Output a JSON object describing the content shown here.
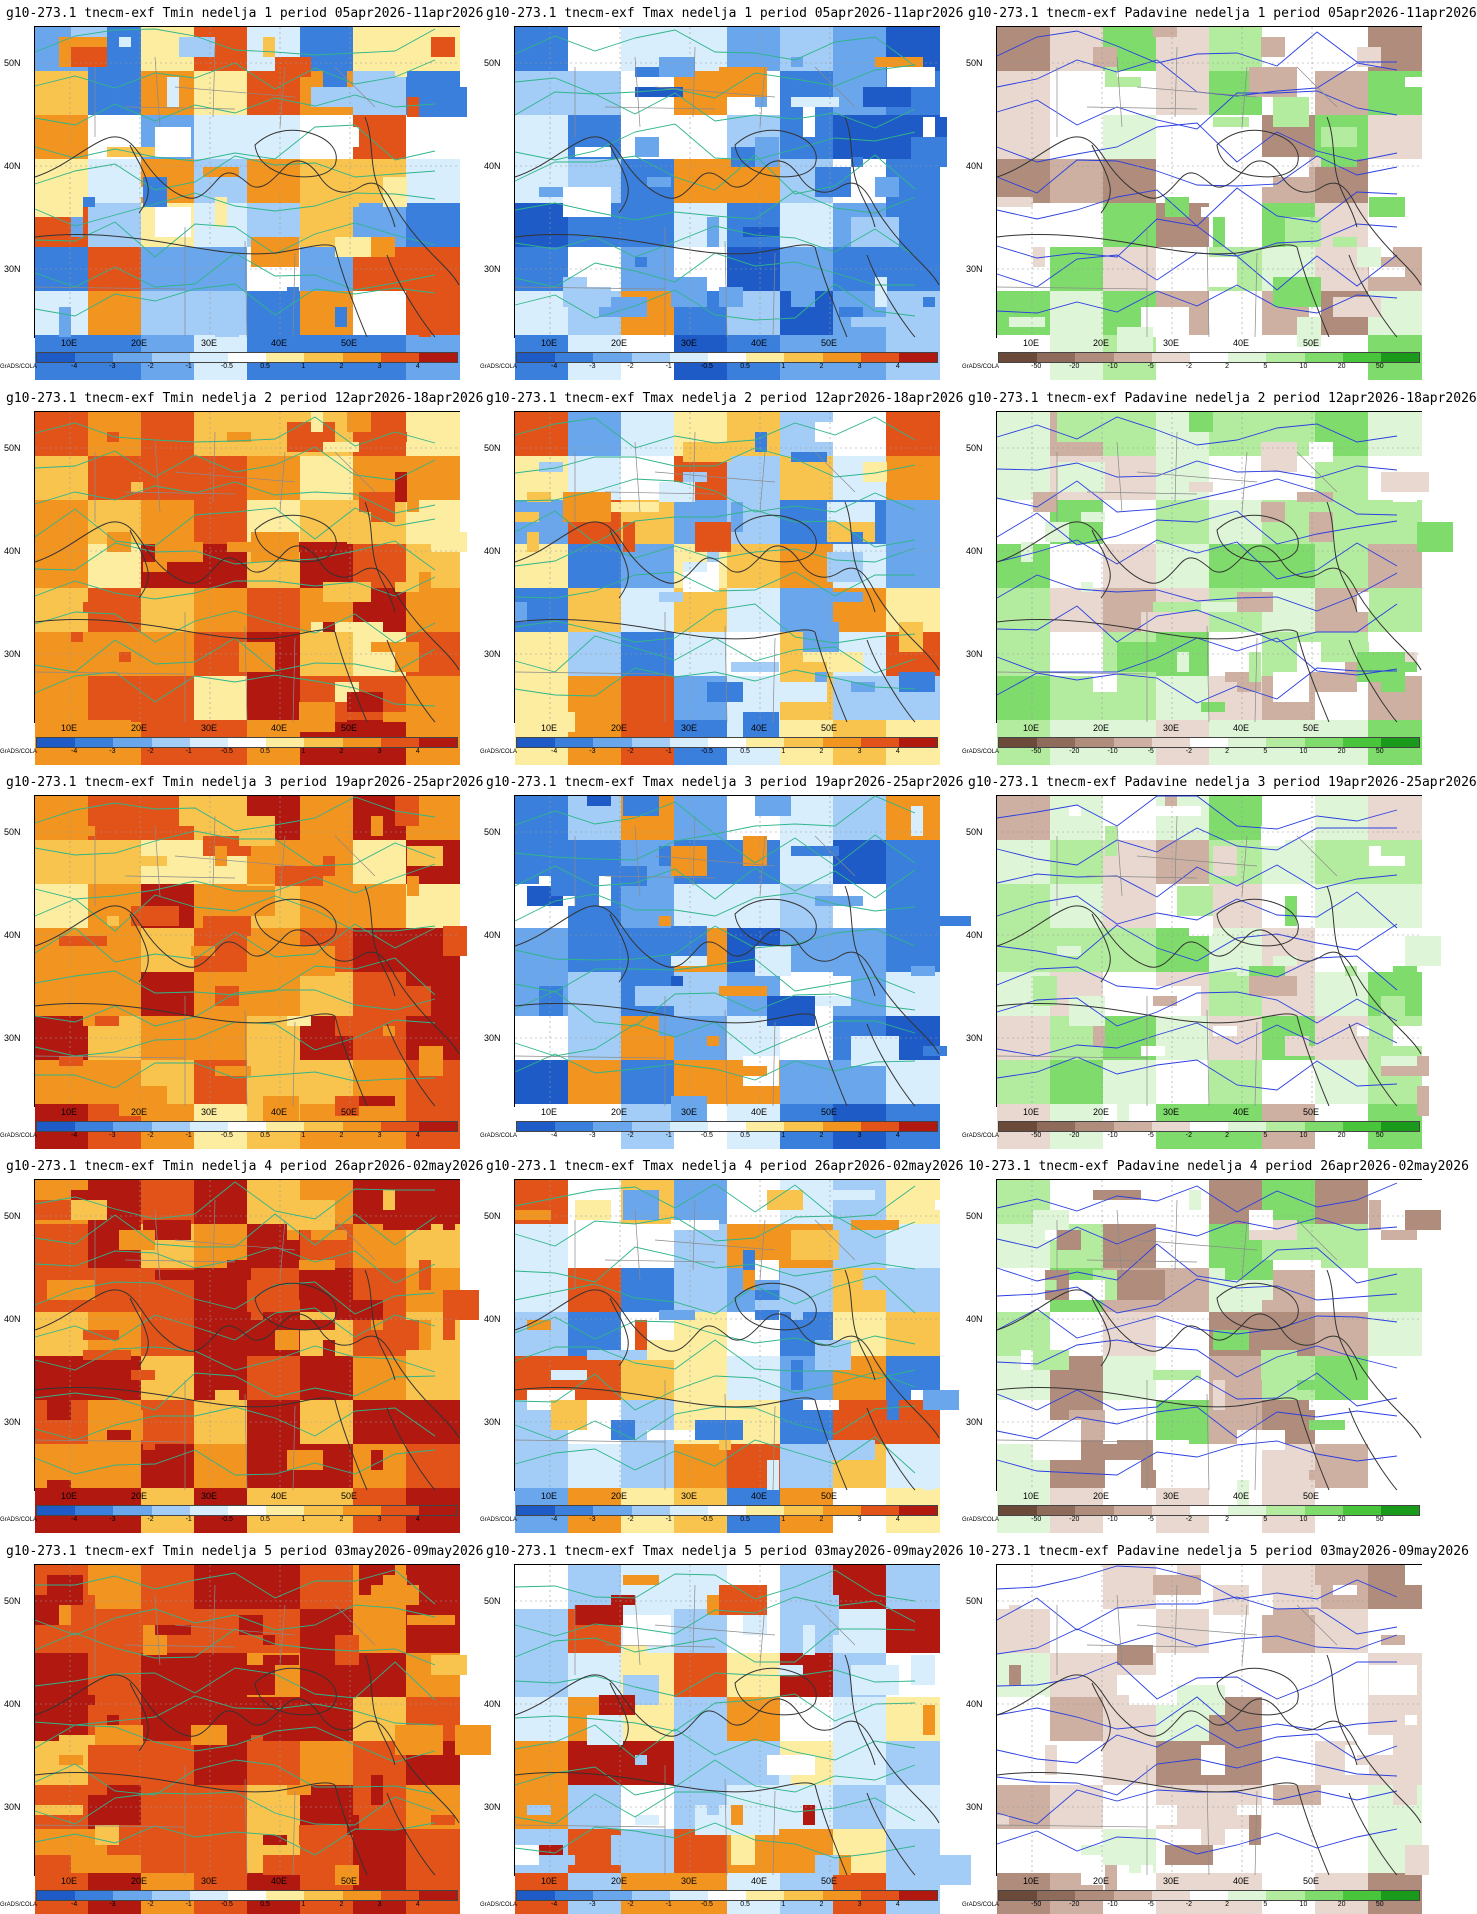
{
  "brand": "GrADS/COLA",
  "axis": {
    "lon_labels": [
      "10E",
      "20E",
      "30E",
      "40E",
      "50E"
    ],
    "lat_labels": [
      "50N",
      "40N",
      "30N"
    ]
  },
  "legends": {
    "temp": {
      "ticks": [
        "-4",
        "-3",
        "-2",
        "-1",
        "-0.5",
        "0.5",
        "1",
        "2",
        "3",
        "4"
      ],
      "colors": [
        "#1e5bc6",
        "#3b7fdc",
        "#6aa6ec",
        "#a3cdf6",
        "#d9eefc",
        "#ffffff",
        "#fdeda0",
        "#f9c44e",
        "#f29420",
        "#e2531a",
        "#b11810"
      ]
    },
    "precip": {
      "ticks": [
        "-50",
        "-20",
        "-10",
        "-5",
        "-2",
        "2",
        "5",
        "10",
        "20",
        "50"
      ],
      "colors": [
        "#6b4a3a",
        "#8f6b5b",
        "#b08c7c",
        "#cdb0a2",
        "#e8d8cf",
        "#ffffff",
        "#dff5d8",
        "#b4ec9f",
        "#7fdc6c",
        "#48c53a",
        "#1a9a1a"
      ]
    }
  },
  "panels": [
    {
      "title": "g10-273.1 tnecm-exf Tmin nedelja 1 period 05apr2026-11apr2026",
      "type": "temp",
      "tone": "mixed-cool"
    },
    {
      "title": "g10-273.1 tnecm-exf Tmax nedelja 1 period 05apr2026-11apr2026",
      "type": "temp",
      "tone": "cool"
    },
    {
      "title": "g10-273.1 tnecm-exf Padavine nedelja 1 period 05apr2026-11apr2026",
      "type": "precip",
      "tone": "mixed"
    },
    {
      "title": "g10-273.1 tnecm-exf Tmin nedelja 2 period 12apr2026-18apr2026",
      "type": "temp",
      "tone": "warm"
    },
    {
      "title": "g10-273.1 tnecm-exf Tmax nedelja 2 period 12apr2026-18apr2026",
      "type": "temp",
      "tone": "mixed-cool"
    },
    {
      "title": "g10-273.1 tnecm-exf Padavine nedelja 2 period 12apr2026-18apr2026",
      "type": "precip",
      "tone": "wet"
    },
    {
      "title": "g10-273.1 tnecm-exf Tmin nedelja 3 period 19apr2026-25apr2026",
      "type": "temp",
      "tone": "warm"
    },
    {
      "title": "g10-273.1 tnecm-exf Tmax nedelja 3 period 19apr2026-25apr2026",
      "type": "temp",
      "tone": "cool"
    },
    {
      "title": "g10-273.1 tnecm-exf Padavine nedelja 3 period 19apr2026-25apr2026",
      "type": "precip",
      "tone": "wet"
    },
    {
      "title": "g10-273.1 tnecm-exf Tmin nedelja 4 period 26apr2026-02may2026",
      "type": "temp",
      "tone": "hot"
    },
    {
      "title": "g10-273.1 tnecm-exf Tmax nedelja 4 period 26apr2026-02may2026",
      "type": "temp",
      "tone": "mixed-cool"
    },
    {
      "title": "10-273.1 tnecm-exf Padavine nedelja 4 period 26apr2026-02may2026",
      "type": "precip",
      "tone": "mixed"
    },
    {
      "title": "g10-273.1 tnecm-exf Tmin nedelja 5 period 03may2026-09may2026",
      "type": "temp",
      "tone": "hot"
    },
    {
      "title": "g10-273.1 tnecm-exf Tmax nedelja 5 period 03may2026-09may2026",
      "type": "temp",
      "tone": "mixed"
    },
    {
      "title": "10-273.1 tnecm-exf Padavine nedelja 5 period 03may2026-09may2026",
      "type": "precip",
      "tone": "dry"
    }
  ]
}
